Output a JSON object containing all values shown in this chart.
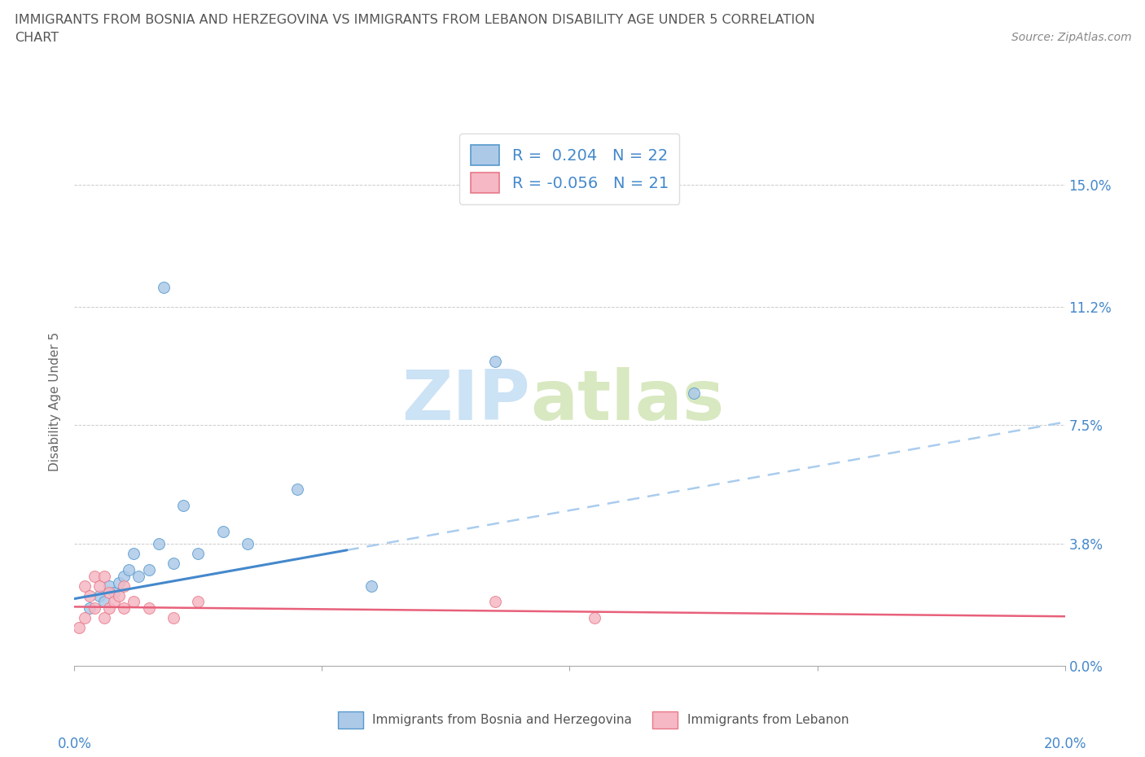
{
  "title_line1": "IMMIGRANTS FROM BOSNIA AND HERZEGOVINA VS IMMIGRANTS FROM LEBANON DISABILITY AGE UNDER 5 CORRELATION",
  "title_line2": "CHART",
  "source": "Source: ZipAtlas.com",
  "ylabel": "Disability Age Under 5",
  "xlim": [
    0.0,
    20.0
  ],
  "ylim": [
    0.0,
    16.5
  ],
  "ytick_values": [
    0.0,
    3.8,
    7.5,
    11.2,
    15.0
  ],
  "ytick_labels": [
    "0.0%",
    "3.8%",
    "7.5%",
    "11.2%",
    "15.0%"
  ],
  "bosnia_color": "#adc9e8",
  "lebanon_color": "#f5b8c4",
  "bosnia_edge_color": "#5599cc",
  "lebanon_edge_color": "#e87888",
  "bosnia_line_color": "#4488cc",
  "lebanon_line_color": "#e8607a",
  "dash_line_color": "#aaccee",
  "grid_color": "#cccccc",
  "bg_color": "#ffffff",
  "title_color": "#555555",
  "axis_val_color": "#4488cc",
  "legend_R_color": "#4488cc",
  "legend_N_color": "#333333",
  "bosnia_x": [
    0.3,
    0.5,
    0.6,
    0.7,
    0.8,
    0.9,
    1.0,
    1.1,
    1.2,
    1.3,
    1.5,
    1.7,
    2.0,
    2.2,
    2.5,
    3.0,
    3.5,
    4.5,
    6.0,
    8.5,
    12.5,
    1.8
  ],
  "bosnia_y": [
    1.8,
    2.2,
    2.0,
    2.5,
    2.3,
    2.6,
    2.8,
    3.0,
    3.5,
    2.8,
    3.0,
    3.8,
    3.2,
    5.0,
    3.5,
    4.2,
    3.8,
    5.5,
    2.5,
    9.5,
    8.5,
    11.8
  ],
  "lebanon_x": [
    0.1,
    0.2,
    0.2,
    0.3,
    0.4,
    0.4,
    0.5,
    0.6,
    0.6,
    0.7,
    0.7,
    0.8,
    0.9,
    1.0,
    1.0,
    1.2,
    1.5,
    2.0,
    2.5,
    8.5,
    10.5
  ],
  "lebanon_y": [
    1.2,
    1.5,
    2.5,
    2.2,
    1.8,
    2.8,
    2.5,
    1.5,
    2.8,
    1.8,
    2.3,
    2.0,
    2.2,
    2.5,
    1.8,
    2.0,
    1.8,
    1.5,
    2.0,
    2.0,
    1.5
  ],
  "bosnia_line_x0": 0.0,
  "bosnia_line_y0": 2.1,
  "bosnia_line_x1": 20.0,
  "bosnia_line_y1": 7.6,
  "bosnia_solid_end_x": 5.5,
  "lebanon_line_x0": 0.0,
  "lebanon_line_y0": 1.85,
  "lebanon_line_x1": 20.0,
  "lebanon_line_y1": 1.55
}
